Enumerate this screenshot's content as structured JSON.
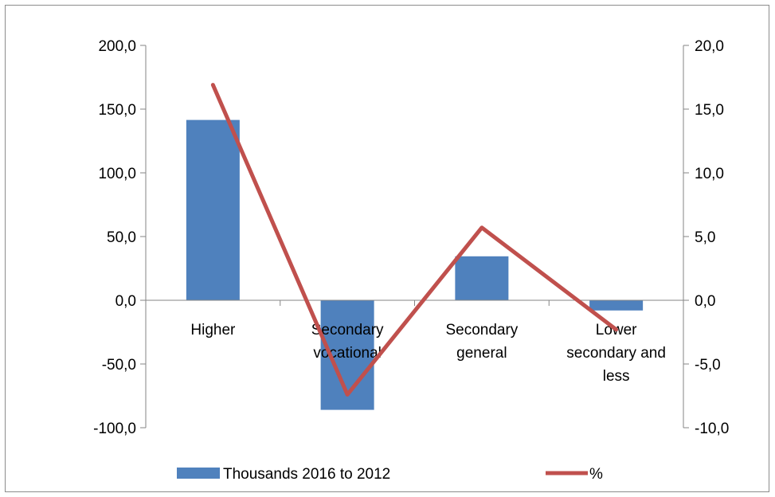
{
  "chart_data": {
    "type": "bar",
    "categories": [
      [
        "Higher"
      ],
      [
        "Secondary",
        "vocational"
      ],
      [
        "Secondary",
        "general"
      ],
      [
        "Lower",
        "secondary and",
        "less"
      ]
    ],
    "series": [
      {
        "name": "Thousands 2016 to 2012",
        "type": "bar",
        "axis": "left",
        "color": "#4F81BD",
        "values": [
          141.5,
          -86.0,
          34.5,
          -8.0
        ]
      },
      {
        "name": "%",
        "type": "line",
        "axis": "right",
        "color": "#C0504D",
        "values": [
          16.9,
          -7.4,
          5.7,
          -2.3
        ]
      }
    ],
    "y_left": {
      "ylim": [
        -100,
        200
      ],
      "ticks": [
        "200,0",
        "150,0",
        "100,0",
        "50,0",
        "0,0",
        "-50,0",
        "-100,0"
      ]
    },
    "y_right": {
      "ylim": [
        -10,
        20
      ],
      "ticks": [
        "20,0",
        "15,0",
        "10,0",
        "5,0",
        "0,0",
        "-5,0",
        "-10,0"
      ]
    },
    "legend_position": "bottom",
    "grid": false
  }
}
